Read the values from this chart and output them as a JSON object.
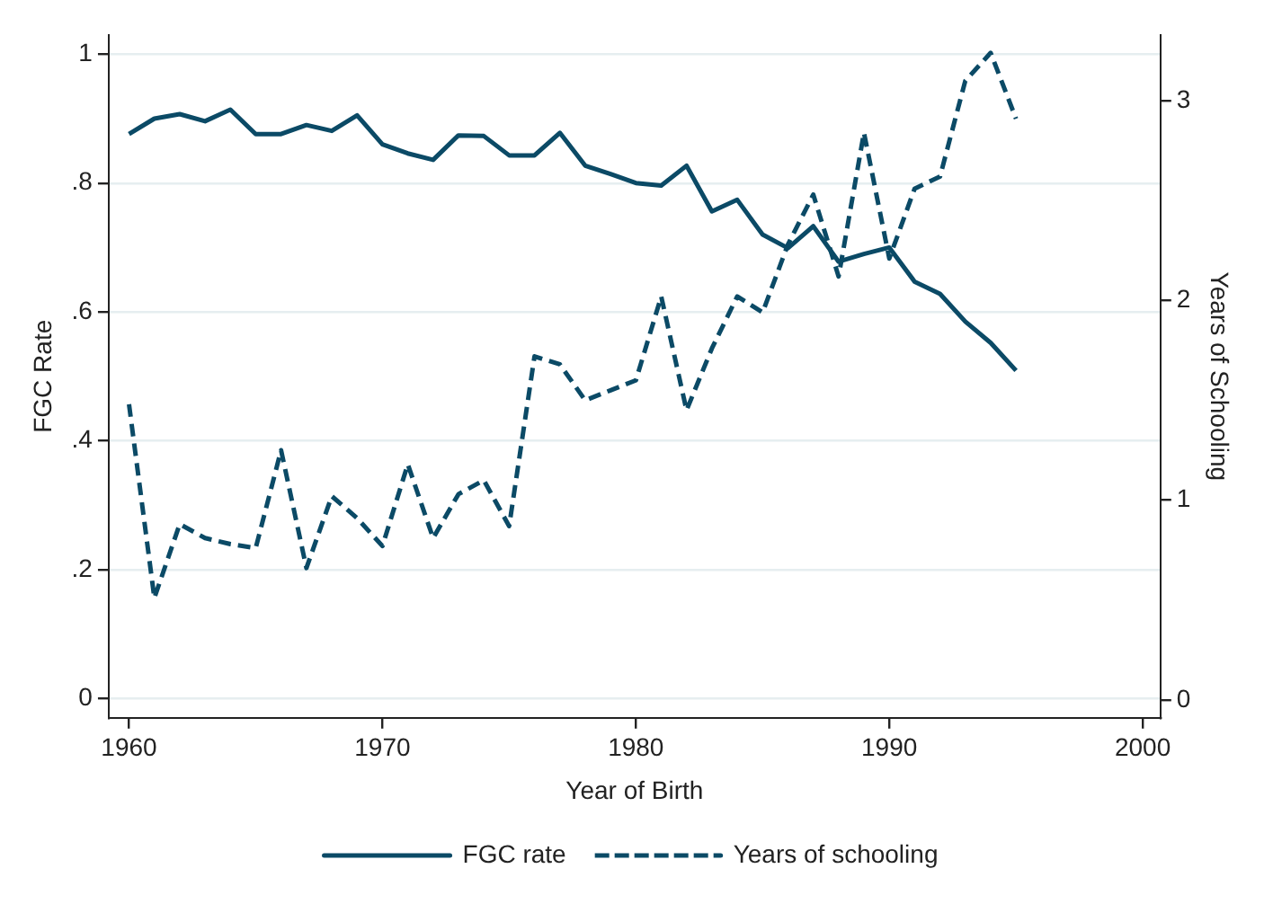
{
  "chart_data": {
    "type": "line",
    "xlabel": "Year of Birth",
    "ylabel": "FGC Rate",
    "y2label": "Years of Schooling",
    "x": [
      1960,
      1961,
      1962,
      1963,
      1964,
      1965,
      1966,
      1967,
      1968,
      1969,
      1970,
      1971,
      1972,
      1973,
      1974,
      1975,
      1976,
      1977,
      1978,
      1979,
      1980,
      1981,
      1982,
      1983,
      1984,
      1985,
      1986,
      1987,
      1988,
      1989,
      1990,
      1991,
      1992,
      1993,
      1994,
      1995
    ],
    "series": [
      {
        "name": "FGC rate",
        "color": "#0b4a66",
        "line_style": "solid",
        "values": [
          0.876,
          0.9,
          0.907,
          0.896,
          0.914,
          0.876,
          0.876,
          0.89,
          0.881,
          0.905,
          0.86,
          0.846,
          0.836,
          0.874,
          0.873,
          0.843,
          0.843,
          0.878,
          0.827,
          0.814,
          0.8,
          0.796,
          0.827,
          0.756,
          0.774,
          0.72,
          0.699,
          0.733,
          0.678,
          0.69,
          0.7,
          0.647,
          0.628,
          0.585,
          0.552,
          0.509
        ]
      },
      {
        "name": "Years of schooling",
        "color": "#0b4a66",
        "line_style": "dashed",
        "axis": "y2",
        "values": [
          1.48,
          0.51,
          0.88,
          0.81,
          0.78,
          0.76,
          1.25,
          0.66,
          1.02,
          0.91,
          0.77,
          1.18,
          0.81,
          1.03,
          1.1,
          0.87,
          1.72,
          1.68,
          1.5,
          1.55,
          1.6,
          2.02,
          1.45,
          1.76,
          2.02,
          1.94,
          2.28,
          2.53,
          2.12,
          2.84,
          2.21,
          2.56,
          2.62,
          3.1,
          3.24,
          2.91
        ]
      }
    ],
    "xlim": [
      1959.2,
      2000.7
    ],
    "xticks": [
      1960,
      1970,
      1980,
      1990,
      2000
    ],
    "ylim": [
      -0.03,
      1.03
    ],
    "yticks": [
      0,
      {
        "value": 0.2,
        "label": ".2"
      },
      {
        "value": 0.4,
        "label": ".4"
      },
      {
        "value": 0.6,
        "label": ".6"
      },
      {
        "value": 0.8,
        "label": ".8"
      },
      1
    ],
    "y2lim": [
      -0.09,
      3.33
    ],
    "y2ticks": [
      0,
      1,
      2,
      3
    ],
    "grid": "y",
    "legend": "bottom",
    "marker": "none"
  }
}
